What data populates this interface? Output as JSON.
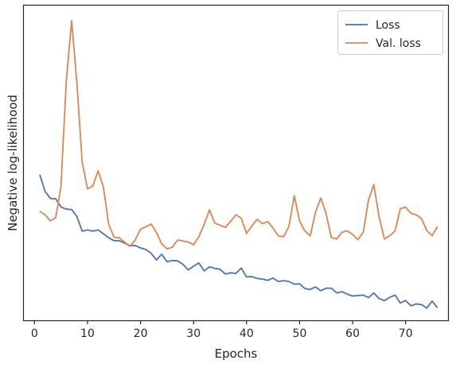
{
  "chart_data": {
    "type": "line",
    "xlabel": "Epochs",
    "ylabel": "Negative log-likelihood",
    "xlim": [
      -2,
      78
    ],
    "ylim": [
      0.0,
      1.0
    ],
    "xticks": [
      0,
      10,
      20,
      30,
      40,
      50,
      60,
      70
    ],
    "yticks_shown": false,
    "grid": false,
    "legend_position": "top-right",
    "x": [
      1,
      2,
      3,
      4,
      5,
      6,
      7,
      8,
      9,
      10,
      11,
      12,
      13,
      14,
      15,
      16,
      17,
      18,
      19,
      20,
      21,
      22,
      23,
      24,
      25,
      26,
      27,
      28,
      29,
      30,
      31,
      32,
      33,
      34,
      35,
      36,
      37,
      38,
      39,
      40,
      41,
      42,
      43,
      44,
      45,
      46,
      47,
      48,
      49,
      50,
      51,
      52,
      53,
      54,
      55,
      56,
      57,
      58,
      59,
      60,
      61,
      62,
      63,
      64,
      65,
      66,
      67,
      68,
      69,
      70,
      71,
      72,
      73,
      74,
      75,
      76
    ],
    "series": [
      {
        "name": "Loss",
        "color": "#4c72b0",
        "values": [
          0.463,
          0.409,
          0.387,
          0.386,
          0.36,
          0.353,
          0.352,
          0.33,
          0.283,
          0.287,
          0.283,
          0.287,
          0.275,
          0.262,
          0.253,
          0.253,
          0.245,
          0.237,
          0.238,
          0.23,
          0.225,
          0.213,
          0.192,
          0.21,
          0.186,
          0.19,
          0.189,
          0.178,
          0.16,
          0.172,
          0.182,
          0.157,
          0.17,
          0.165,
          0.162,
          0.147,
          0.151,
          0.149,
          0.166,
          0.138,
          0.139,
          0.133,
          0.131,
          0.127,
          0.134,
          0.123,
          0.126,
          0.123,
          0.115,
          0.116,
          0.101,
          0.098,
          0.106,
          0.094,
          0.102,
          0.102,
          0.087,
          0.091,
          0.083,
          0.077,
          0.079,
          0.08,
          0.072,
          0.087,
          0.069,
          0.063,
          0.073,
          0.08,
          0.055,
          0.063,
          0.046,
          0.052,
          0.05,
          0.039,
          0.061,
          0.04
        ]
      },
      {
        "name": "Val. loss",
        "color": "#dd8452",
        "values": [
          0.346,
          0.335,
          0.316,
          0.326,
          0.425,
          0.76,
          0.952,
          0.755,
          0.502,
          0.418,
          0.427,
          0.475,
          0.424,
          0.305,
          0.264,
          0.262,
          0.248,
          0.235,
          0.255,
          0.29,
          0.297,
          0.306,
          0.279,
          0.243,
          0.227,
          0.232,
          0.255,
          0.252,
          0.249,
          0.24,
          0.266,
          0.304,
          0.351,
          0.309,
          0.302,
          0.295,
          0.315,
          0.335,
          0.324,
          0.276,
          0.3,
          0.321,
          0.307,
          0.314,
          0.293,
          0.268,
          0.266,
          0.299,
          0.396,
          0.316,
          0.284,
          0.268,
          0.343,
          0.389,
          0.339,
          0.263,
          0.258,
          0.28,
          0.284,
          0.273,
          0.256,
          0.279,
          0.383,
          0.431,
          0.328,
          0.258,
          0.269,
          0.284,
          0.355,
          0.359,
          0.34,
          0.335,
          0.323,
          0.285,
          0.269,
          0.298
        ]
      }
    ]
  }
}
